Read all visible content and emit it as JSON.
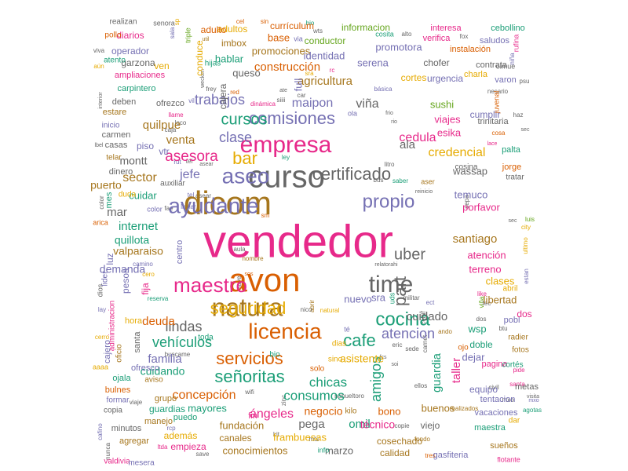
{
  "palette": {
    "green": "#1b9e77",
    "orange": "#d95f02",
    "purple": "#7570b3",
    "pink": "#e7298a",
    "lime": "#66a61e",
    "gold": "#e6ab02",
    "brown": "#a6761d",
    "gray": "#666666"
  },
  "words": [
    {
      "text": "vendedor",
      "color": "pink",
      "size": 58
    },
    {
      "text": "dicom",
      "color": "brown",
      "size": 42
    },
    {
      "text": "avon",
      "color": "orange",
      "size": 42
    },
    {
      "text": "curso",
      "color": "gray",
      "size": 40
    },
    {
      "text": "natura",
      "color": "brown",
      "size": 32
    },
    {
      "text": "empresa",
      "color": "pink",
      "size": 30
    },
    {
      "text": "time",
      "color": "gray",
      "size": 30
    },
    {
      "text": "ayudante",
      "color": "purple",
      "size": 28
    },
    {
      "text": "licencia",
      "color": "orange",
      "size": 28
    },
    {
      "text": "maestro",
      "color": "pink",
      "size": 26
    },
    {
      "text": "aseo",
      "color": "purple",
      "size": 28
    },
    {
      "text": "propio",
      "color": "purple",
      "size": 24
    },
    {
      "text": "cocina",
      "color": "green",
      "size": 24
    },
    {
      "text": "certificado",
      "color": "gray",
      "size": 22
    },
    {
      "text": "seguridad",
      "color": "gold",
      "size": 22
    },
    {
      "text": "servicios",
      "color": "orange",
      "size": 22
    },
    {
      "text": "señoritas",
      "color": "green",
      "size": 22
    },
    {
      "text": "comisiones",
      "color": "purple",
      "size": 22
    },
    {
      "text": "cafe",
      "color": "green",
      "size": 22
    },
    {
      "text": "part",
      "color": "gray",
      "size": 22
    },
    {
      "text": "bar",
      "color": "gold",
      "size": 22
    },
    {
      "text": "uber",
      "color": "gray",
      "size": 20
    },
    {
      "text": "cursos",
      "color": "green",
      "size": 20
    },
    {
      "text": "asesora",
      "color": "pink",
      "size": 19
    },
    {
      "text": "clase",
      "color": "purple",
      "size": 18
    },
    {
      "text": "trabajos",
      "color": "purple",
      "size": 18
    },
    {
      "text": "amigos",
      "color": "green",
      "size": 18
    },
    {
      "text": "atencion",
      "color": "purple",
      "size": 18
    },
    {
      "text": "vehículos",
      "color": "green",
      "size": 18
    },
    {
      "text": "lindas",
      "color": "gray",
      "size": 18
    },
    {
      "text": "consumos",
      "color": "green",
      "size": 17
    },
    {
      "text": "chicas",
      "color": "green",
      "size": 17
    },
    {
      "text": "concepción",
      "color": "orange",
      "size": 16
    },
    {
      "text": "ángeles",
      "color": "pink",
      "size": 16
    },
    {
      "text": "cedula",
      "color": "pink",
      "size": 16
    },
    {
      "text": "credencial",
      "color": "gold",
      "size": 16
    },
    {
      "text": "internet",
      "color": "green",
      "size": 15
    },
    {
      "text": "sector",
      "color": "brown",
      "size": 16
    },
    {
      "text": "jefe",
      "color": "purple",
      "size": 16
    },
    {
      "text": "maipon",
      "color": "purple",
      "size": 16
    },
    {
      "text": "agricultura",
      "color": "brown",
      "size": 15
    },
    {
      "text": "construcción",
      "color": "orange",
      "size": 15
    },
    {
      "text": "viña",
      "color": "gray",
      "size": 16
    },
    {
      "text": "venta",
      "color": "brown",
      "size": 15
    },
    {
      "text": "quilpue",
      "color": "brown",
      "size": 15
    },
    {
      "text": "santiago",
      "color": "brown",
      "size": 15
    },
    {
      "text": "cuidado",
      "color": "gray",
      "size": 15
    },
    {
      "text": "taller",
      "color": "pink",
      "size": 15
    },
    {
      "text": "guardia",
      "color": "green",
      "size": 15
    },
    {
      "text": "asistente",
      "color": "gold",
      "size": 14
    },
    {
      "text": "pega",
      "color": "gray",
      "size": 15
    },
    {
      "text": "omil",
      "color": "green",
      "size": 15
    },
    {
      "text": "negocio",
      "color": "orange",
      "size": 14
    },
    {
      "text": "técnico",
      "color": "pink",
      "size": 14
    },
    {
      "text": "deuda",
      "color": "orange",
      "size": 15
    },
    {
      "text": "familia",
      "color": "purple",
      "size": 15
    },
    {
      "text": "cuidando",
      "color": "green",
      "size": 14
    },
    {
      "text": "valparaiso",
      "color": "brown",
      "size": 14
    },
    {
      "text": "quillota",
      "color": "green",
      "size": 14
    },
    {
      "text": "demanda",
      "color": "purple",
      "size": 14
    },
    {
      "text": "montt",
      "color": "gray",
      "size": 14
    },
    {
      "text": "puerto",
      "color": "brown",
      "size": 14
    },
    {
      "text": "cuidar",
      "color": "green",
      "size": 13
    },
    {
      "text": "mar",
      "color": "gray",
      "size": 15
    },
    {
      "text": "sushi",
      "color": "lime",
      "size": 13
    },
    {
      "text": "viajes",
      "color": "pink",
      "size": 13
    },
    {
      "text": "esika",
      "color": "pink",
      "size": 13
    },
    {
      "text": "wassap",
      "color": "gray",
      "size": 13
    },
    {
      "text": "porfavor",
      "color": "pink",
      "size": 13
    },
    {
      "text": "temuco",
      "color": "purple",
      "size": 13
    },
    {
      "text": "atención",
      "color": "pink",
      "size": 13
    },
    {
      "text": "terreno",
      "color": "pink",
      "size": 13
    },
    {
      "text": "clases",
      "color": "gold",
      "size": 13
    },
    {
      "text": "libertad",
      "color": "brown",
      "size": 13
    },
    {
      "text": "nuevo",
      "color": "purple",
      "size": 13
    },
    {
      "text": "sra",
      "color": "purple",
      "size": 13
    },
    {
      "text": "wsp",
      "color": "green",
      "size": 13
    },
    {
      "text": "guardias",
      "color": "green",
      "size": 12
    },
    {
      "text": "mayores",
      "color": "green",
      "size": 13
    },
    {
      "text": "fundación",
      "color": "brown",
      "size": 13
    },
    {
      "text": "frambuesas",
      "color": "gold",
      "size": 13
    },
    {
      "text": "bono",
      "color": "orange",
      "size": 13
    },
    {
      "text": "buenos",
      "color": "brown",
      "size": 13
    },
    {
      "text": "viejo",
      "color": "gray",
      "size": 12
    },
    {
      "text": "equipo",
      "color": "purple",
      "size": 12
    },
    {
      "text": "dejar",
      "color": "purple",
      "size": 13
    },
    {
      "text": "doble",
      "color": "green",
      "size": 12
    },
    {
      "text": "cosechado",
      "color": "brown",
      "size": 12
    },
    {
      "text": "conocimientos",
      "color": "brown",
      "size": 13
    },
    {
      "text": "marzo",
      "color": "gray",
      "size": 13
    },
    {
      "text": "calidad",
      "color": "brown",
      "size": 12
    },
    {
      "text": "canales",
      "color": "brown",
      "size": 12
    },
    {
      "text": "empieza",
      "color": "pink",
      "size": 12
    },
    {
      "text": "adultos",
      "color": "gold",
      "size": 12
    },
    {
      "text": "además",
      "color": "gold",
      "size": 12
    },
    {
      "text": "hablar",
      "color": "green",
      "size": 13
    },
    {
      "text": "promociones",
      "color": "brown",
      "size": 13
    },
    {
      "text": "identidad",
      "color": "purple",
      "size": 13
    },
    {
      "text": "conductor",
      "color": "lime",
      "size": 12
    },
    {
      "text": "promotora",
      "color": "purple",
      "size": 13
    },
    {
      "text": "serena",
      "color": "purple",
      "size": 13
    },
    {
      "text": "chofer",
      "color": "gray",
      "size": 12
    },
    {
      "text": "cortes",
      "color": "gold",
      "size": 12
    },
    {
      "text": "urgencia",
      "color": "purple",
      "size": 12
    },
    {
      "text": "cumplir",
      "color": "purple",
      "size": 12
    },
    {
      "text": "trinitaria",
      "color": "gray",
      "size": 11
    },
    {
      "text": "palta",
      "color": "green",
      "size": 11
    },
    {
      "text": "jorge",
      "color": "orange",
      "size": 11
    },
    {
      "text": "queso",
      "color": "gray",
      "size": 13
    },
    {
      "text": "imbox",
      "color": "brown",
      "size": 12
    },
    {
      "text": "adulto",
      "color": "orange",
      "size": 12
    },
    {
      "text": "currículum",
      "color": "orange",
      "size": 12
    },
    {
      "text": "base",
      "color": "orange",
      "size": 13
    },
    {
      "text": "informacion",
      "color": "lime",
      "size": 12
    },
    {
      "text": "interesa",
      "color": "pink",
      "size": 11
    },
    {
      "text": "cebollino",
      "color": "green",
      "size": 11
    },
    {
      "text": "verifica",
      "color": "pink",
      "size": 11
    },
    {
      "text": "saludos",
      "color": "purple",
      "size": 11
    },
    {
      "text": "instalación",
      "color": "orange",
      "size": 11
    },
    {
      "text": "contrata",
      "color": "gray",
      "size": 11
    },
    {
      "text": "charla",
      "color": "gold",
      "size": 11
    },
    {
      "text": "varon",
      "color": "purple",
      "size": 11
    },
    {
      "text": "diarios",
      "color": "pink",
      "size": 12
    },
    {
      "text": "operador",
      "color": "purple",
      "size": 12
    },
    {
      "text": "garzona",
      "color": "gray",
      "size": 12
    },
    {
      "text": "ampliaciones",
      "color": "pink",
      "size": 11
    },
    {
      "text": "carpintero",
      "color": "green",
      "size": 11
    },
    {
      "text": "deben",
      "color": "gray",
      "size": 11
    },
    {
      "text": "ofrezco",
      "color": "gray",
      "size": 11
    },
    {
      "text": "estare",
      "color": "brown",
      "size": 11
    },
    {
      "text": "carmen",
      "color": "gray",
      "size": 11
    },
    {
      "text": "casas",
      "color": "gray",
      "size": 11
    },
    {
      "text": "piso",
      "color": "purple",
      "size": 12
    },
    {
      "text": "dinero",
      "color": "gray",
      "size": 11
    },
    {
      "text": "pesos",
      "color": "purple",
      "size": 12
    },
    {
      "text": "fija",
      "color": "pink",
      "size": 12
    },
    {
      "text": "tentacion",
      "color": "purple",
      "size": 11
    },
    {
      "text": "vacaciones",
      "color": "purple",
      "size": 11
    },
    {
      "text": "maestra",
      "color": "green",
      "size": 11
    },
    {
      "text": "sueños",
      "color": "brown",
      "size": 11
    },
    {
      "text": "gasfiteria",
      "color": "purple",
      "size": 11
    },
    {
      "text": "flotante",
      "color": "pink",
      "size": 9
    },
    {
      "text": "pagina",
      "color": "pink",
      "size": 11
    },
    {
      "text": "metas",
      "color": "gray",
      "size": 11
    },
    {
      "text": "fotos",
      "color": "brown",
      "size": 10
    },
    {
      "text": "cortés",
      "color": "green",
      "size": 10
    },
    {
      "text": "radier",
      "color": "brown",
      "size": 10
    },
    {
      "text": "pobl",
      "color": "purple",
      "size": 11
    },
    {
      "text": "dos",
      "color": "pink",
      "size": 12
    },
    {
      "text": "ofresco",
      "color": "purple",
      "size": 11
    },
    {
      "text": "aviso",
      "color": "brown",
      "size": 10
    },
    {
      "text": "ojala",
      "color": "green",
      "size": 11
    },
    {
      "text": "bulnes",
      "color": "orange",
      "size": 11
    },
    {
      "text": "formar",
      "color": "purple",
      "size": 10
    },
    {
      "text": "copia",
      "color": "gray",
      "size": 10
    },
    {
      "text": "manejo",
      "color": "brown",
      "size": 11
    },
    {
      "text": "grupo",
      "color": "brown",
      "size": 11
    },
    {
      "text": "minutos",
      "color": "gray",
      "size": 11
    },
    {
      "text": "agregar",
      "color": "brown",
      "size": 11
    },
    {
      "text": "puedo",
      "color": "green",
      "size": 11
    },
    {
      "text": "valdivia",
      "color": "pink",
      "size": 10
    },
    {
      "text": "mesera",
      "color": "purple",
      "size": 10
    },
    {
      "text": "administracion",
      "color": "pink",
      "size": 10
    },
    {
      "text": "cajero",
      "color": "purple",
      "size": 11
    },
    {
      "text": "hora",
      "color": "gold",
      "size": 11
    },
    {
      "text": "santa",
      "color": "gray",
      "size": 11
    },
    {
      "text": "oficio",
      "color": "brown",
      "size": 10
    },
    {
      "text": "cajera",
      "color": "gray",
      "size": 12
    },
    {
      "text": "conduce",
      "color": "gold",
      "size": 12
    },
    {
      "text": "full",
      "color": "purple",
      "size": 13
    },
    {
      "text": "realizan",
      "color": "gray",
      "size": 10
    },
    {
      "text": "pollo",
      "color": "orange",
      "size": 10
    },
    {
      "text": "atento",
      "color": "green",
      "size": 10
    },
    {
      "text": "inicio",
      "color": "purple",
      "size": 10
    },
    {
      "text": "telar",
      "color": "brown",
      "size": 10
    },
    {
      "text": "mes",
      "color": "green",
      "size": 11
    },
    {
      "text": "luz",
      "color": "purple",
      "size": 12
    },
    {
      "text": "vtr",
      "color": "purple",
      "size": 12
    },
    {
      "text": "ven",
      "color": "gold",
      "size": 12
    },
    {
      "text": "hijas",
      "color": "green",
      "size": 10
    },
    {
      "text": "ala",
      "color": "gray",
      "size": 15
    },
    {
      "text": "cosina",
      "color": "gray",
      "size": 10
    },
    {
      "text": "tratar",
      "color": "gray",
      "size": 10
    },
    {
      "text": "centro",
      "color": "purple",
      "size": 11
    },
    {
      "text": "lider",
      "color": "purple",
      "size": 10
    },
    {
      "text": "auxiliar",
      "color": "gray",
      "size": 10
    },
    {
      "text": "duda",
      "color": "gold",
      "size": 10
    },
    {
      "text": "toda",
      "color": "green",
      "size": 10
    },
    {
      "text": "solo",
      "color": "orange",
      "size": 10
    },
    {
      "text": "dias",
      "color": "gold",
      "size": 10
    },
    {
      "text": "sino",
      "color": "gold",
      "size": 10
    },
    {
      "text": "bio",
      "color": "green",
      "size": 10
    },
    {
      "text": "fin",
      "color": "pink",
      "size": 11
    },
    {
      "text": "kilo",
      "color": "brown",
      "size": 10
    },
    {
      "text": "rcp",
      "color": "purple",
      "size": 8
    },
    {
      "text": "dar",
      "color": "gold",
      "size": 10
    },
    {
      "text": "ojo",
      "color": "orange",
      "size": 10
    },
    {
      "text": "info",
      "color": "green",
      "size": 9
    }
  ]
}
